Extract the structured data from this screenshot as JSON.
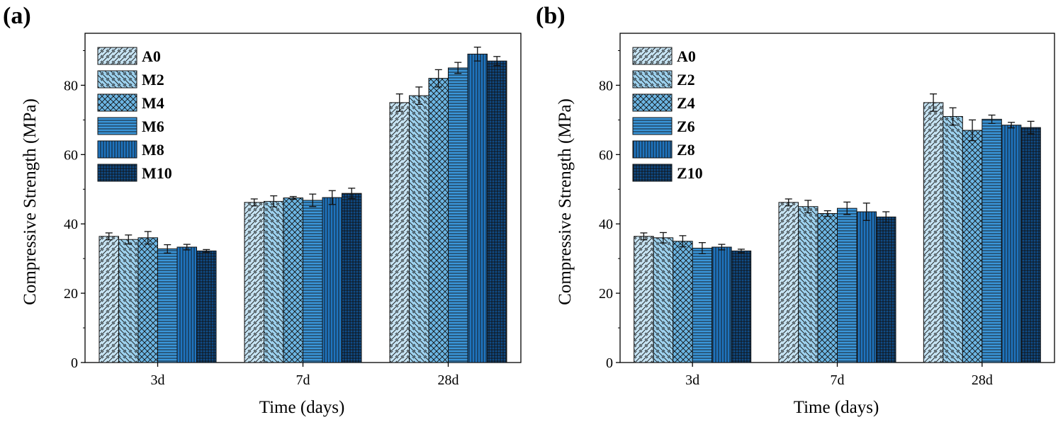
{
  "colors": [
    "#c6e3f3",
    "#9dd1ee",
    "#6cb6e4",
    "#3a96da",
    "#1f74bf",
    "#0f4b86"
  ],
  "chart_data": [
    {
      "panel_label": "(a)",
      "type": "bar",
      "categories": [
        "3d",
        "7d",
        "28d"
      ],
      "xlabel": "Time (days)",
      "ylabel": "Compressive Strength (MPa)",
      "ylim": [
        0,
        95
      ],
      "yticks": [
        0,
        20,
        40,
        60,
        80
      ],
      "legend_position": "top-left",
      "series": [
        {
          "name": "A0",
          "pattern": "diag-right",
          "values": [
            36.4,
            46.2,
            75.0
          ],
          "errors": [
            1.0,
            1.0,
            2.5
          ]
        },
        {
          "name": "M2",
          "pattern": "diag-left",
          "values": [
            35.5,
            46.5,
            77.0
          ],
          "errors": [
            1.3,
            1.6,
            2.5
          ]
        },
        {
          "name": "M4",
          "pattern": "crosshatch",
          "values": [
            36.0,
            47.5,
            82.0
          ],
          "errors": [
            1.8,
            0.4,
            2.5
          ]
        },
        {
          "name": "M6",
          "pattern": "horizontal",
          "values": [
            32.8,
            46.8,
            85.0
          ],
          "errors": [
            1.2,
            1.8,
            1.6
          ]
        },
        {
          "name": "M8",
          "pattern": "vertical",
          "values": [
            33.3,
            47.6,
            89.0
          ],
          "errors": [
            0.8,
            2.0,
            2.0
          ]
        },
        {
          "name": "M10",
          "pattern": "grid",
          "values": [
            32.2,
            48.8,
            87.0
          ],
          "errors": [
            0.4,
            1.5,
            1.3
          ]
        }
      ]
    },
    {
      "panel_label": "(b)",
      "type": "bar",
      "categories": [
        "3d",
        "7d",
        "28d"
      ],
      "xlabel": "Time (days)",
      "ylabel": "Compressive Strength (MPa)",
      "ylim": [
        0,
        95
      ],
      "yticks": [
        0,
        20,
        40,
        60,
        80
      ],
      "legend_position": "top-left",
      "series": [
        {
          "name": "A0",
          "pattern": "diag-right",
          "values": [
            36.4,
            46.2,
            75.0
          ],
          "errors": [
            1.0,
            1.0,
            2.5
          ]
        },
        {
          "name": "Z2",
          "pattern": "diag-left",
          "values": [
            36.0,
            45.0,
            71.0
          ],
          "errors": [
            1.5,
            1.8,
            2.5
          ]
        },
        {
          "name": "Z4",
          "pattern": "crosshatch",
          "values": [
            35.0,
            43.0,
            67.0
          ],
          "errors": [
            1.6,
            0.8,
            3.0
          ]
        },
        {
          "name": "Z6",
          "pattern": "horizontal",
          "values": [
            33.0,
            44.5,
            70.2
          ],
          "errors": [
            1.6,
            1.8,
            1.2
          ]
        },
        {
          "name": "Z8",
          "pattern": "vertical",
          "values": [
            33.3,
            43.5,
            68.5
          ],
          "errors": [
            0.8,
            2.5,
            0.8
          ]
        },
        {
          "name": "Z10",
          "pattern": "grid",
          "values": [
            32.2,
            42.0,
            67.8
          ],
          "errors": [
            0.5,
            1.5,
            1.8
          ]
        }
      ]
    }
  ]
}
